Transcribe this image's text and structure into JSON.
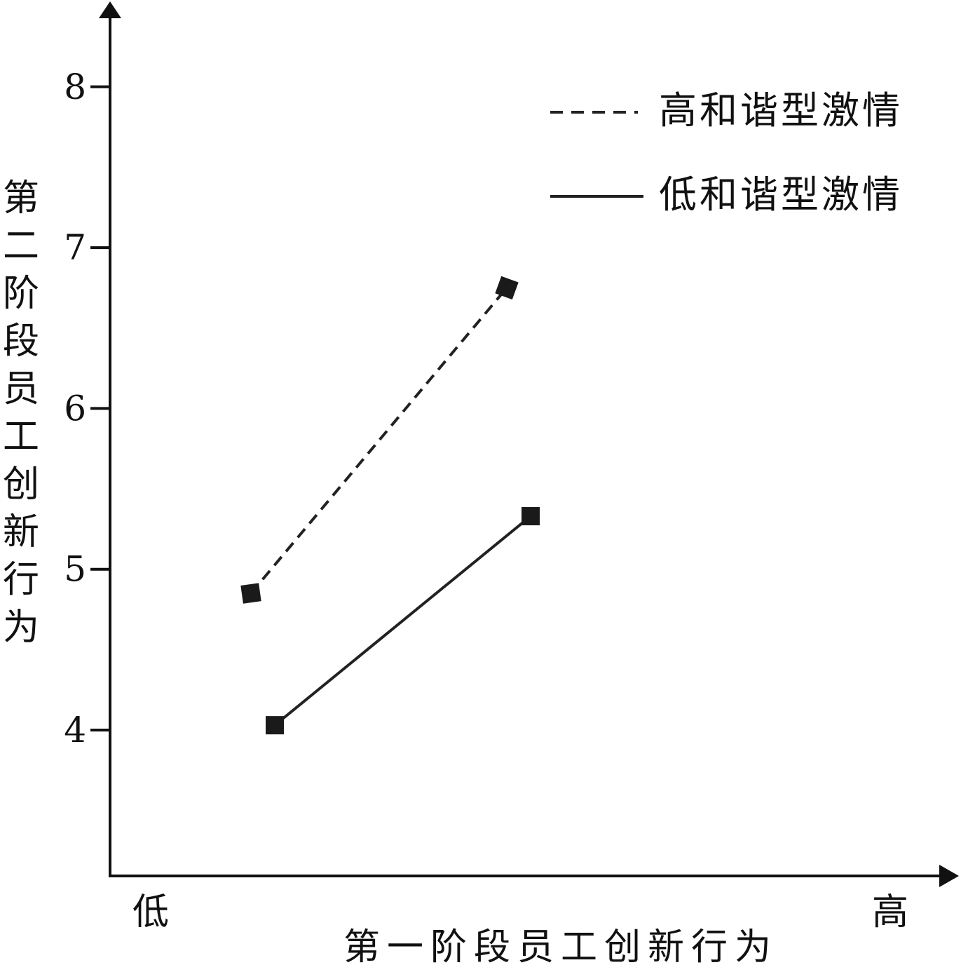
{
  "chart_data": {
    "type": "line",
    "title": "",
    "xlabel": "第一阶段员工创新行为",
    "ylabel": "第二阶段员工创新行为",
    "categories": [
      "低",
      "高"
    ],
    "yticks": [
      4,
      5,
      6,
      7,
      8
    ],
    "ylim": [
      3.1,
      8.45
    ],
    "legend_position": "top-right",
    "grid": false,
    "series": [
      {
        "name": "高和谐型激情",
        "style": "dashed",
        "color": "#222222",
        "values": [
          4.85,
          6.75
        ]
      },
      {
        "name": "低和谐型激情",
        "style": "solid",
        "color": "#222222",
        "values": [
          4.03,
          5.33
        ]
      }
    ]
  }
}
